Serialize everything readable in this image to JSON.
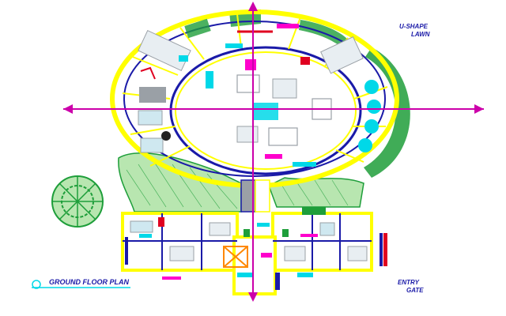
{
  "drawing": {
    "title_block_label": "GROUND FLOOR PLAN",
    "top_right_label_line1": "U-SHAPE",
    "top_right_label_line2": "LAWN",
    "bottom_right_label_line1": "ENTRY",
    "bottom_right_label_line2": "GATE"
  },
  "colors": {
    "background": "#ffffff",
    "axis_line": "#cc00aa",
    "wall": "#ffff00",
    "ring_inner": "#1a1aa8",
    "lawn": "#1e9e3a",
    "lawn_light": "#b8e6b0",
    "cyan_fixture": "#00d8e8",
    "magenta_fixture": "#ff00cc",
    "red_accent": "#e00020",
    "orange_accent": "#ff8800",
    "grey_furniture": "#9aa0a6"
  }
}
